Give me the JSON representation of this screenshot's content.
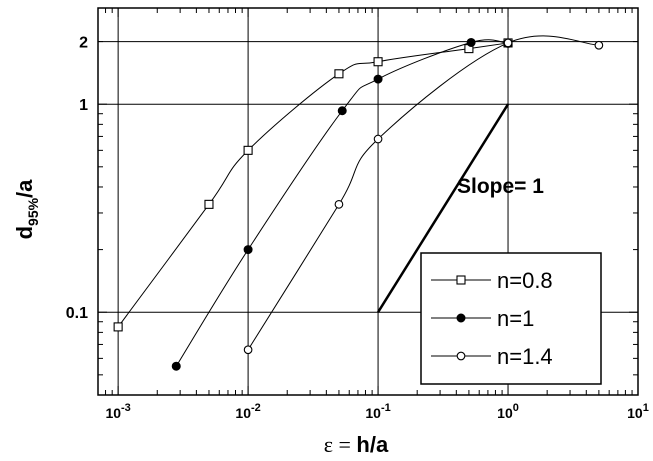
{
  "chart_data": {
    "type": "line",
    "xlabel_prefix": "ε = ",
    "xlabel_main": "h/a",
    "ylabel_main": "d",
    "ylabel_sub": "95%",
    "ylabel_suffix": "/a",
    "x_scale": "log",
    "y_scale": "log",
    "xlim": [
      0.0007,
      10
    ],
    "ylim": [
      0.04,
      2.9
    ],
    "grid": true,
    "legend_position": "bottom-right",
    "x_ticks": [
      {
        "value": 0.001,
        "base": "10",
        "exp": "-3"
      },
      {
        "value": 0.01,
        "base": "10",
        "exp": "-2"
      },
      {
        "value": 0.1,
        "base": "10",
        "exp": "-1"
      },
      {
        "value": 1,
        "base": "10",
        "exp": "0"
      },
      {
        "value": 10,
        "base": "10",
        "exp": "1"
      }
    ],
    "y_ticks": [
      {
        "value": 0.1,
        "label": "0.1"
      },
      {
        "value": 1,
        "label": "1"
      },
      {
        "value": 2,
        "label": "2"
      }
    ],
    "series": [
      {
        "name": "n=0.8",
        "marker": "open-square",
        "x": [
          0.001,
          0.005,
          0.01,
          0.05,
          0.1,
          0.5,
          1
        ],
        "y": [
          0.085,
          0.33,
          0.6,
          1.4,
          1.6,
          1.85,
          1.97
        ]
      },
      {
        "name": "n=1",
        "marker": "filled-circle",
        "x": [
          0.0028,
          0.01,
          0.053,
          0.1,
          0.52,
          1
        ],
        "y": [
          0.055,
          0.2,
          0.93,
          1.32,
          1.98,
          1.96
        ]
      },
      {
        "name": "n=1.4",
        "marker": "open-circle",
        "x": [
          0.01,
          0.05,
          0.1,
          1,
          5
        ],
        "y": [
          0.066,
          0.33,
          0.68,
          1.97,
          1.92
        ]
      }
    ],
    "slope_line": {
      "label": "Slope= 1",
      "x": [
        0.1,
        1
      ],
      "y": [
        0.1,
        1
      ]
    }
  }
}
